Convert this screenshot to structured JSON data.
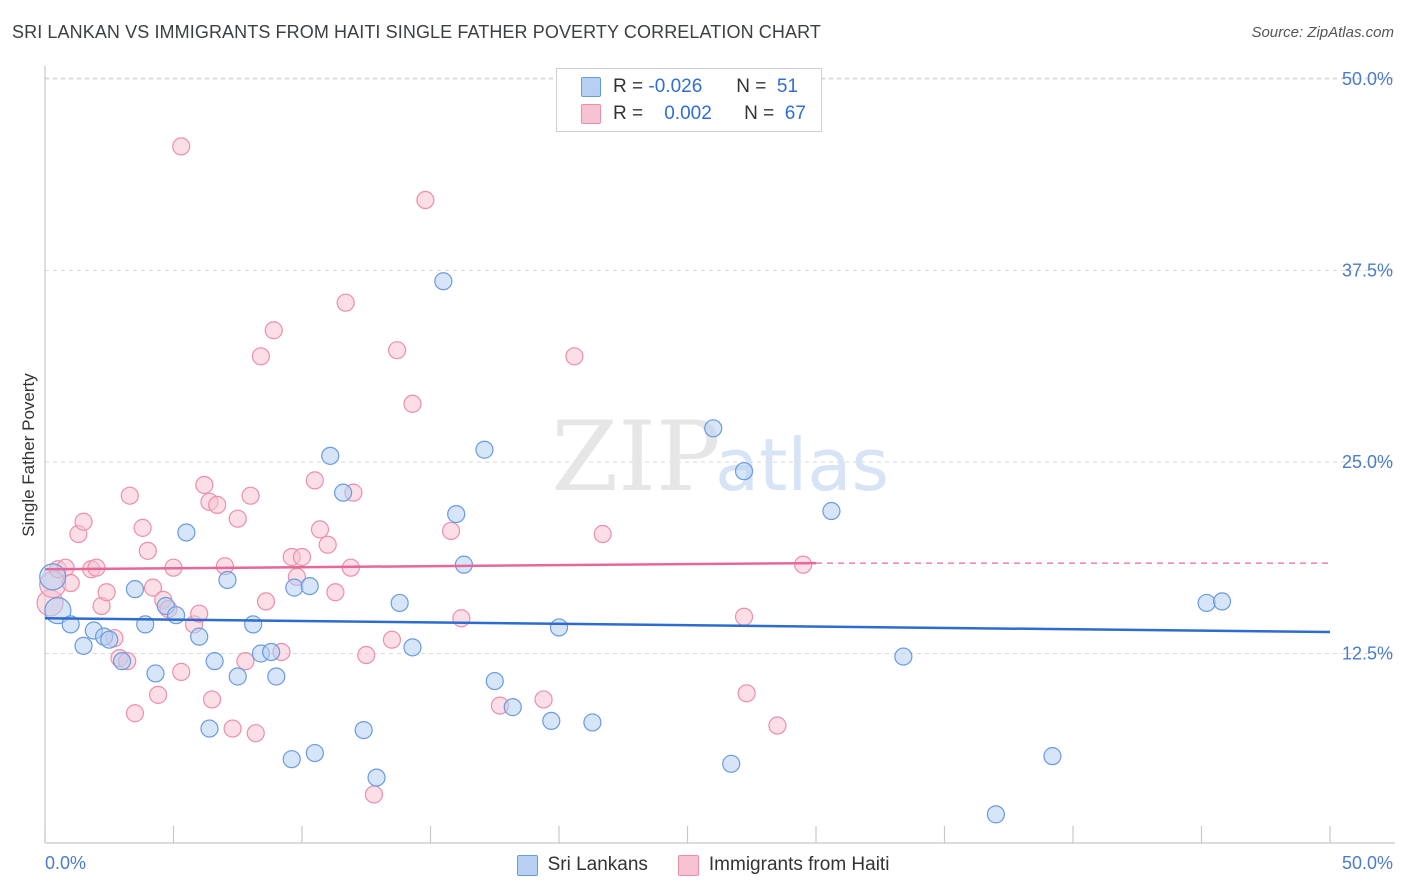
{
  "title": "SRI LANKAN VS IMMIGRANTS FROM HAITI SINGLE FATHER POVERTY CORRELATION CHART",
  "source": "Source: ZipAtlas.com",
  "watermark": {
    "zip": "ZIP",
    "atlas": "atlas"
  },
  "legend_stats": [
    {
      "r_label": "R =",
      "r_value": "-0.026",
      "n_label": "N =",
      "n_value": "51"
    },
    {
      "r_label": "R =",
      "r_value": "0.002",
      "n_label": "N =",
      "n_value": "67"
    }
  ],
  "colors": {
    "blue_fill": "#b5d0f2",
    "blue_stroke": "#6a9be0",
    "blue_line": "#2c6cd0",
    "pink_fill": "#f7c2d2",
    "pink_stroke": "#ec8fab",
    "pink_line": "#e8679a",
    "grid": "#d8d8d8",
    "tick_text": "#4a7cc9"
  },
  "chart_data": {
    "type": "scatter",
    "xlabel": "",
    "ylabel": "Single Father Poverty",
    "xlim": [
      0,
      50
    ],
    "ylim": [
      0,
      52
    ],
    "x_tick_labels": [
      "0.0%",
      "50.0%"
    ],
    "y_ticks": [
      12.5,
      25.0,
      37.5,
      50.0
    ],
    "y_tick_labels": [
      "12.5%",
      "25.0%",
      "37.5%",
      "50.0%"
    ],
    "grid": true,
    "legend_position": "bottom",
    "series": [
      {
        "name": "Sri Lankans",
        "r": -0.026,
        "n": 51,
        "trend": {
          "x": [
            0,
            50
          ],
          "y": [
            14.8,
            13.9
          ],
          "dashed_from": null
        },
        "points": [
          [
            0.3,
            17.5
          ],
          [
            0.5,
            15.3
          ],
          [
            1.0,
            14.4
          ],
          [
            1.5,
            13.0
          ],
          [
            1.9,
            14.0
          ],
          [
            2.3,
            13.6
          ],
          [
            2.5,
            13.4
          ],
          [
            3.0,
            12.0
          ],
          [
            3.5,
            16.7
          ],
          [
            3.9,
            14.4
          ],
          [
            4.3,
            11.2
          ],
          [
            4.7,
            15.6
          ],
          [
            5.1,
            15.0
          ],
          [
            5.5,
            20.4
          ],
          [
            6.0,
            13.6
          ],
          [
            6.4,
            7.6
          ],
          [
            6.6,
            12.0
          ],
          [
            7.1,
            17.3
          ],
          [
            7.5,
            11.0
          ],
          [
            8.1,
            14.4
          ],
          [
            8.4,
            12.5
          ],
          [
            8.8,
            12.6
          ],
          [
            9.0,
            11.0
          ],
          [
            9.6,
            5.6
          ],
          [
            9.7,
            16.8
          ],
          [
            10.3,
            16.9
          ],
          [
            10.5,
            6.0
          ],
          [
            11.1,
            25.4
          ],
          [
            11.6,
            23.0
          ],
          [
            12.4,
            7.5
          ],
          [
            12.9,
            4.4
          ],
          [
            13.8,
            15.8
          ],
          [
            14.3,
            12.9
          ],
          [
            15.5,
            36.8
          ],
          [
            16.0,
            21.6
          ],
          [
            16.3,
            18.3
          ],
          [
            17.1,
            25.8
          ],
          [
            17.5,
            10.7
          ],
          [
            18.2,
            9.0
          ],
          [
            19.7,
            8.1
          ],
          [
            20.0,
            14.2
          ],
          [
            21.3,
            8.0
          ],
          [
            26.0,
            27.2
          ],
          [
            26.7,
            5.3
          ],
          [
            27.2,
            24.4
          ],
          [
            30.6,
            21.8
          ],
          [
            33.4,
            12.3
          ],
          [
            37.0,
            2.0
          ],
          [
            39.2,
            5.8
          ],
          [
            45.2,
            15.8
          ],
          [
            45.8,
            15.9
          ]
        ]
      },
      {
        "name": "Immigrants from Haiti",
        "r": 0.002,
        "n": 67,
        "trend": {
          "x": [
            0,
            30,
            50
          ],
          "y": [
            18.0,
            18.4,
            18.4
          ],
          "dashed_from": 30
        },
        "points": [
          [
            0.2,
            15.8
          ],
          [
            0.3,
            17.0
          ],
          [
            0.5,
            18.0
          ],
          [
            0.8,
            18.1
          ],
          [
            1.0,
            17.1
          ],
          [
            1.3,
            20.3
          ],
          [
            1.5,
            21.1
          ],
          [
            1.8,
            18.0
          ],
          [
            2.0,
            18.1
          ],
          [
            2.2,
            15.6
          ],
          [
            2.4,
            16.5
          ],
          [
            2.7,
            13.5
          ],
          [
            2.9,
            12.2
          ],
          [
            3.2,
            12.0
          ],
          [
            3.3,
            22.8
          ],
          [
            3.5,
            8.6
          ],
          [
            3.8,
            20.7
          ],
          [
            4.0,
            19.2
          ],
          [
            4.2,
            16.8
          ],
          [
            4.4,
            9.8
          ],
          [
            4.6,
            16.0
          ],
          [
            4.8,
            15.4
          ],
          [
            5.0,
            18.1
          ],
          [
            5.3,
            11.3
          ],
          [
            5.8,
            14.4
          ],
          [
            6.0,
            15.1
          ],
          [
            6.2,
            23.5
          ],
          [
            6.4,
            22.4
          ],
          [
            6.5,
            9.5
          ],
          [
            6.7,
            22.2
          ],
          [
            7.0,
            18.2
          ],
          [
            7.3,
            7.6
          ],
          [
            7.5,
            21.3
          ],
          [
            7.8,
            12.0
          ],
          [
            8.0,
            22.8
          ],
          [
            8.2,
            7.3
          ],
          [
            8.4,
            31.9
          ],
          [
            8.6,
            15.9
          ],
          [
            8.9,
            33.6
          ],
          [
            9.2,
            12.6
          ],
          [
            9.6,
            18.8
          ],
          [
            9.8,
            17.5
          ],
          [
            10.0,
            18.8
          ],
          [
            10.5,
            23.8
          ],
          [
            10.7,
            20.6
          ],
          [
            11.0,
            19.6
          ],
          [
            11.3,
            16.5
          ],
          [
            11.7,
            35.4
          ],
          [
            11.9,
            18.1
          ],
          [
            12.0,
            23.0
          ],
          [
            12.5,
            12.4
          ],
          [
            12.8,
            3.3
          ],
          [
            13.5,
            13.4
          ],
          [
            13.7,
            32.3
          ],
          [
            14.3,
            28.8
          ],
          [
            14.8,
            42.1
          ],
          [
            15.8,
            20.5
          ],
          [
            16.2,
            14.8
          ],
          [
            17.7,
            9.1
          ],
          [
            19.4,
            9.5
          ],
          [
            20.6,
            31.9
          ],
          [
            21.7,
            20.3
          ],
          [
            27.2,
            14.9
          ],
          [
            27.3,
            9.9
          ],
          [
            28.5,
            7.8
          ],
          [
            29.5,
            18.3
          ],
          [
            5.3,
            45.6
          ]
        ]
      }
    ]
  }
}
